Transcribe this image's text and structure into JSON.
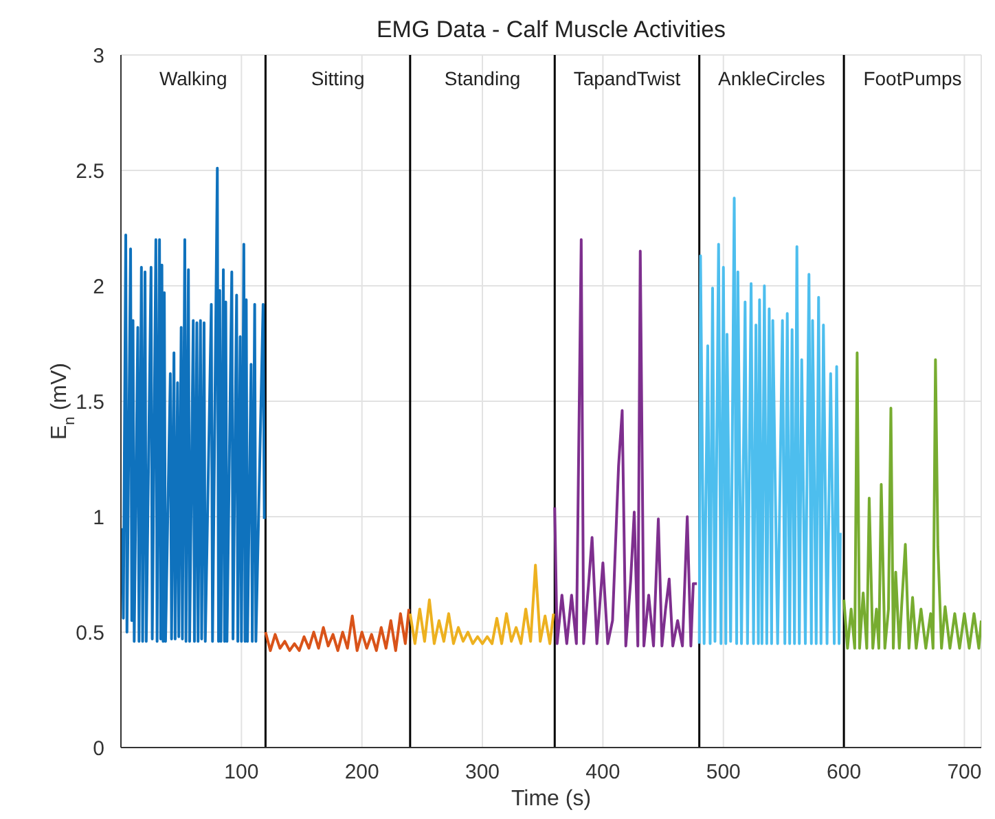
{
  "chart_data": {
    "type": "line",
    "title": "EMG Data - Calf Muscle Activities",
    "xlabel": "Time (s)",
    "ylabel": "E$_{n}$ (mV)",
    "xlim": [
      0,
      714
    ],
    "xticks": [
      100,
      200,
      300,
      400,
      500,
      600,
      700
    ],
    "ylim": [
      0,
      3
    ],
    "yticks": [
      0,
      0.5,
      1,
      1.5,
      2,
      2.5,
      3
    ],
    "grid": true,
    "marker": "none",
    "line_style": "solid",
    "annotations": [
      "Walking",
      "Sitting",
      "Standing",
      "TapandTwist",
      "AnkleCircles",
      "FootPumps"
    ],
    "ref_lines": [
      {
        "axis": "x",
        "value": 120,
        "color": "#000000"
      },
      {
        "axis": "x",
        "value": 240,
        "color": "#000000"
      },
      {
        "axis": "x",
        "value": 360,
        "color": "#000000"
      },
      {
        "axis": "x",
        "value": 480,
        "color": "#000000"
      },
      {
        "axis": "x",
        "value": 600,
        "color": "#000000"
      }
    ],
    "series": [
      {
        "color": "#0f72bd",
        "x": [
          1,
          2,
          4,
          5,
          8,
          9,
          10,
          11,
          14,
          15,
          17,
          18,
          20,
          21,
          25,
          26,
          29,
          30,
          32,
          33,
          34,
          35,
          36,
          37,
          41,
          42,
          44,
          45,
          47,
          48,
          50,
          51,
          53,
          54,
          56,
          57,
          60,
          61,
          63,
          64,
          66,
          67,
          69,
          70,
          75,
          76,
          80,
          81,
          82,
          83,
          85,
          86,
          87,
          88,
          92,
          93,
          96,
          97,
          99,
          100,
          102,
          103,
          104,
          105,
          108,
          109,
          111,
          112,
          118,
          119
        ],
        "values": [
          0.95,
          0.56,
          2.22,
          0.5,
          2.16,
          0.55,
          1.85,
          0.46,
          1.82,
          0.46,
          2.08,
          0.46,
          2.06,
          0.46,
          2.08,
          0.47,
          2.2,
          0.46,
          2.2,
          0.47,
          2.09,
          0.46,
          1.97,
          0.46,
          1.62,
          0.47,
          1.71,
          0.47,
          1.58,
          0.48,
          1.82,
          0.47,
          2.2,
          0.46,
          2.07,
          0.46,
          1.85,
          0.46,
          1.84,
          0.46,
          1.85,
          0.47,
          1.84,
          0.46,
          1.92,
          0.46,
          2.51,
          0.46,
          1.98,
          0.46,
          2.07,
          0.46,
          1.93,
          0.46,
          2.06,
          0.47,
          1.96,
          0.46,
          1.78,
          0.46,
          2.18,
          0.46,
          1.94,
          0.46,
          1.66,
          0.46,
          1.92,
          0.46,
          1.92,
          0.99
        ]
      },
      {
        "color": "#d95319",
        "x": [
          120,
          124,
          128,
          132,
          136,
          140,
          144,
          148,
          152,
          156,
          160,
          164,
          168,
          172,
          176,
          180,
          184,
          188,
          192,
          196,
          200,
          204,
          208,
          212,
          216,
          220,
          224,
          228,
          232,
          236,
          239
        ],
        "values": [
          0.5,
          0.42,
          0.49,
          0.43,
          0.46,
          0.42,
          0.45,
          0.42,
          0.48,
          0.43,
          0.5,
          0.43,
          0.52,
          0.44,
          0.49,
          0.42,
          0.5,
          0.43,
          0.57,
          0.42,
          0.5,
          0.43,
          0.49,
          0.42,
          0.52,
          0.43,
          0.55,
          0.42,
          0.58,
          0.45,
          0.6
        ]
      },
      {
        "color": "#edb120",
        "x": [
          240,
          244,
          248,
          252,
          256,
          260,
          264,
          268,
          272,
          276,
          280,
          284,
          288,
          292,
          296,
          300,
          304,
          308,
          312,
          316,
          320,
          324,
          328,
          332,
          336,
          340,
          344,
          348,
          352,
          356,
          359
        ],
        "values": [
          0.58,
          0.45,
          0.6,
          0.46,
          0.64,
          0.45,
          0.55,
          0.46,
          0.58,
          0.45,
          0.52,
          0.46,
          0.5,
          0.45,
          0.48,
          0.45,
          0.48,
          0.45,
          0.56,
          0.45,
          0.58,
          0.46,
          0.52,
          0.45,
          0.6,
          0.46,
          0.79,
          0.46,
          0.57,
          0.45,
          0.58
        ]
      },
      {
        "color": "#7e2f8e",
        "x": [
          360,
          362,
          366,
          370,
          374,
          378,
          382,
          384,
          388,
          391,
          395,
          400,
          404,
          408,
          413,
          416,
          419,
          423,
          426,
          429,
          431,
          434,
          438,
          442,
          446,
          449,
          452,
          455,
          458,
          462,
          466,
          470,
          473,
          475,
          478
        ],
        "values": [
          1.04,
          0.45,
          0.66,
          0.45,
          0.66,
          0.45,
          2.2,
          0.45,
          0.7,
          0.91,
          0.45,
          0.8,
          0.45,
          0.55,
          1.22,
          1.46,
          0.44,
          0.72,
          1.02,
          0.44,
          2.15,
          0.44,
          0.66,
          0.44,
          0.99,
          0.44,
          0.6,
          0.73,
          0.44,
          0.55,
          0.44,
          1.0,
          0.44,
          0.71,
          0.71
        ]
      },
      {
        "color": "#4dbeee",
        "x": [
          480,
          481,
          484,
          487,
          489,
          491,
          493,
          496,
          498,
          500,
          502,
          503,
          506,
          509,
          511,
          512,
          515,
          518,
          520,
          523,
          525,
          527,
          529,
          530,
          532,
          534,
          536,
          538,
          540,
          541,
          545,
          549,
          551,
          553,
          555,
          557,
          559,
          561,
          563,
          565,
          568,
          571,
          573,
          574,
          577,
          579,
          581,
          583,
          586,
          589,
          592,
          594,
          596,
          597
        ],
        "values": [
          0.45,
          2.13,
          0.45,
          1.74,
          0.45,
          1.99,
          0.46,
          2.18,
          0.45,
          2.08,
          0.45,
          1.79,
          0.46,
          2.38,
          0.45,
          2.06,
          0.45,
          1.93,
          0.45,
          2.01,
          0.45,
          1.83,
          0.45,
          1.94,
          0.45,
          2.0,
          0.45,
          1.9,
          0.45,
          1.85,
          0.45,
          1.85,
          0.45,
          1.88,
          0.45,
          1.81,
          0.45,
          2.17,
          0.45,
          1.68,
          0.45,
          2.05,
          0.45,
          1.85,
          0.45,
          1.95,
          0.45,
          1.83,
          0.45,
          1.62,
          0.45,
          1.65,
          0.45,
          0.93
        ]
      },
      {
        "color": "#77ac30",
        "x": [
          600,
          603,
          606,
          609,
          611,
          613,
          616,
          619,
          621,
          624,
          627,
          629,
          631,
          634,
          637,
          639,
          641,
          643,
          646,
          648,
          651,
          654,
          657,
          660,
          664,
          668,
          672,
          674,
          676,
          678,
          681,
          684,
          688,
          692,
          696,
          700,
          704,
          708,
          712,
          714
        ],
        "values": [
          0.64,
          0.43,
          0.6,
          0.43,
          1.71,
          0.43,
          0.67,
          0.43,
          1.08,
          0.43,
          0.6,
          0.43,
          1.14,
          0.43,
          0.6,
          1.47,
          0.43,
          0.76,
          0.43,
          0.62,
          0.88,
          0.43,
          0.65,
          0.43,
          0.6,
          0.43,
          0.58,
          0.43,
          1.68,
          0.87,
          0.43,
          0.61,
          0.43,
          0.58,
          0.43,
          0.58,
          0.43,
          0.58,
          0.43,
          0.55
        ]
      }
    ]
  }
}
